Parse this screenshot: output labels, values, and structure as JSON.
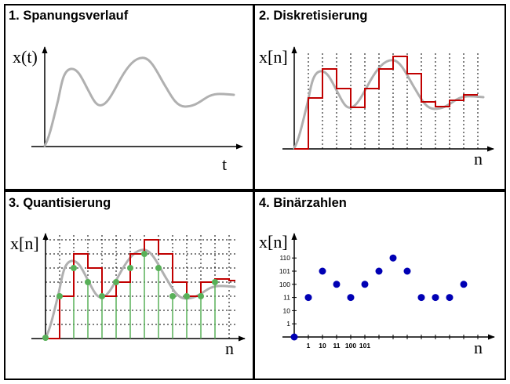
{
  "panels": [
    {
      "title": "1. Spanungsverlauf",
      "ylabel": "x(t)",
      "xlabel": "t"
    },
    {
      "title": "2. Diskretisierung",
      "ylabel": "x[n]",
      "xlabel": "n"
    },
    {
      "title": "3. Quantisierung",
      "ylabel": "x[n]",
      "xlabel": "n"
    },
    {
      "title": "4. Binärzahlen",
      "ylabel": "x[n]",
      "xlabel": "n"
    }
  ],
  "y_tick_labels": [
    "1",
    "10",
    "11",
    "100",
    "101",
    "110"
  ],
  "x_tick_labels": [
    "1",
    "10",
    "11",
    "100",
    "101"
  ],
  "colors": {
    "signal": "#b0b0b0",
    "steps": "#c00000",
    "samples": "#58b058",
    "stems": "#58b058",
    "binary_points": "#0000b4",
    "border": "#000000"
  },
  "chart_data": [
    {
      "type": "line",
      "panel": "1. Spanungsverlauf",
      "description_free": true,
      "x": [
        0,
        0.5,
        1.5,
        2,
        3,
        3.5,
        4,
        5,
        5.5,
        6,
        7,
        7.5,
        8,
        9,
        10,
        11,
        12
      ],
      "y": [
        0,
        3.5,
        5.5,
        6,
        2.7,
        3.2,
        4.5,
        6.2,
        6.1,
        4,
        2.7,
        2.9,
        3,
        3,
        3.3,
        3.1,
        3.1
      ]
    },
    {
      "type": "scatter",
      "panel": "4. Binärzahlen",
      "x": [
        0,
        1,
        2,
        3,
        4,
        5,
        6,
        7,
        8,
        9,
        10,
        11,
        12
      ],
      "y": [
        0,
        3,
        5,
        4,
        3,
        4,
        5,
        6,
        5,
        3,
        3,
        3,
        4
      ],
      "y_ticks": [
        1,
        2,
        3,
        4,
        5,
        6
      ],
      "y_tick_labels": [
        "1",
        "10",
        "11",
        "100",
        "101",
        "110"
      ]
    }
  ]
}
